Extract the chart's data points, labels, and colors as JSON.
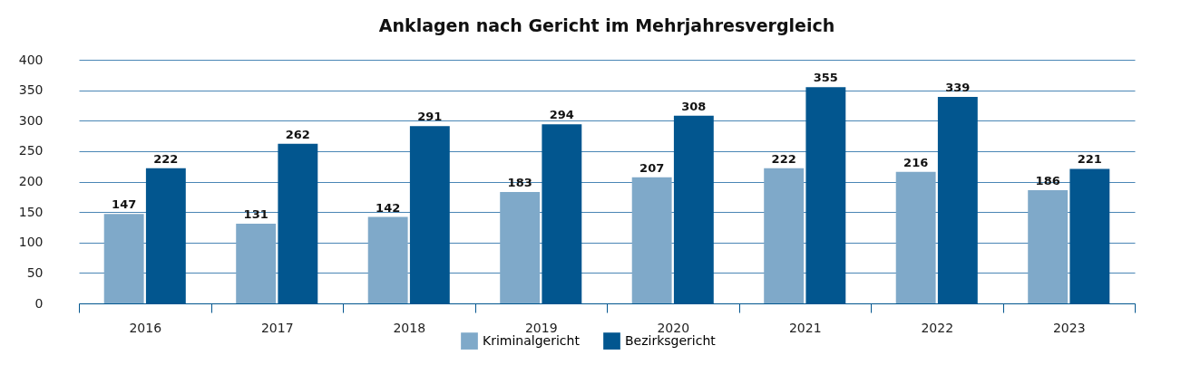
{
  "chart_data": {
    "type": "bar",
    "title": "Anklagen nach Gericht im Mehrjahresvergleich",
    "categories": [
      "2016",
      "2017",
      "2018",
      "2019",
      "2020",
      "2021",
      "2022",
      "2023"
    ],
    "series": [
      {
        "name": "Kriminalgericht",
        "color": "#7fa9c9",
        "values": [
          147,
          131,
          142,
          183,
          207,
          222,
          216,
          186
        ]
      },
      {
        "name": "Bezirksgericht",
        "color": "#02568f",
        "values": [
          222,
          262,
          291,
          294,
          308,
          355,
          339,
          221
        ]
      }
    ],
    "ylim": [
      0,
      400
    ],
    "yticks": [
      0,
      50,
      100,
      150,
      200,
      250,
      300,
      350,
      400
    ],
    "grid": "y",
    "legend": "bottom",
    "data_labels": true
  }
}
